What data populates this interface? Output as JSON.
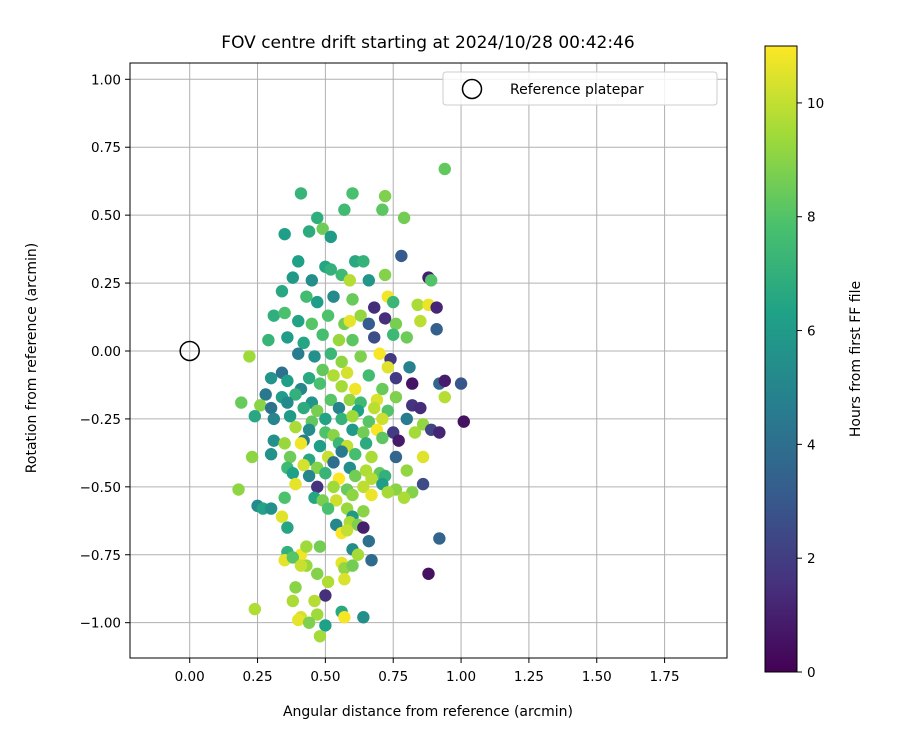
{
  "chart_data": {
    "type": "scatter",
    "title": "FOV centre drift starting at 2024/10/28 00:42:46",
    "xlabel": "Angular distance from reference (arcmin)",
    "ylabel": "Rotation from reference (arcmin)",
    "xlim": [
      -0.22,
      1.98
    ],
    "ylim": [
      -1.13,
      1.06
    ],
    "xticks": [
      "0.00",
      "0.25",
      "0.50",
      "0.75",
      "1.00",
      "1.25",
      "1.50",
      "1.75"
    ],
    "yticks": [
      "1.00",
      "0.75",
      "0.50",
      "0.25",
      "0.00",
      "−0.25",
      "−0.50",
      "−0.75",
      "−1.00"
    ],
    "grid": true,
    "legend": {
      "position": "top-right",
      "entries": [
        "Reference platepar"
      ]
    },
    "reference_point": {
      "x": 0.0,
      "y": 0.0
    },
    "colorbar": {
      "label": "Hours from first FF file",
      "colormap": "viridis",
      "range": [
        0,
        11
      ],
      "ticks": [
        "0",
        "2",
        "4",
        "6",
        "8",
        "10"
      ]
    },
    "colors": [
      "#440154",
      "#46327e",
      "#365c8d",
      "#277f8e",
      "#1fa187",
      "#4ac16d",
      "#a0da39",
      "#fde725"
    ],
    "points": [
      [
        0.94,
        0.67,
        8.3
      ],
      [
        0.72,
        0.57,
        8.8
      ],
      [
        0.41,
        0.58,
        7.2
      ],
      [
        0.6,
        0.58,
        7.8
      ],
      [
        0.79,
        0.49,
        8.6
      ],
      [
        0.71,
        0.52,
        8.2
      ],
      [
        0.57,
        0.52,
        7.5
      ],
      [
        0.47,
        0.49,
        6.9
      ],
      [
        0.35,
        0.43,
        6.2
      ],
      [
        0.44,
        0.44,
        6.8
      ],
      [
        0.49,
        0.45,
        8.5
      ],
      [
        0.52,
        0.42,
        6.0
      ],
      [
        0.61,
        0.33,
        6.7
      ],
      [
        0.64,
        0.33,
        7.1
      ],
      [
        0.78,
        0.35,
        3.1
      ],
      [
        0.4,
        0.33,
        6.3
      ],
      [
        0.38,
        0.27,
        5.9
      ],
      [
        0.45,
        0.26,
        5.4
      ],
      [
        0.5,
        0.31,
        6.5
      ],
      [
        0.52,
        0.3,
        7.0
      ],
      [
        0.56,
        0.28,
        7.4
      ],
      [
        0.59,
        0.26,
        9.8
      ],
      [
        0.66,
        0.26,
        5.8
      ],
      [
        0.72,
        0.28,
        8.9
      ],
      [
        0.88,
        0.27,
        1.0
      ],
      [
        0.89,
        0.26,
        8.0
      ],
      [
        0.34,
        0.22,
        6.6
      ],
      [
        0.43,
        0.2,
        7.6
      ],
      [
        0.47,
        0.18,
        6.1
      ],
      [
        0.53,
        0.2,
        5.2
      ],
      [
        0.6,
        0.19,
        8.4
      ],
      [
        0.68,
        0.16,
        1.4
      ],
      [
        0.73,
        0.2,
        10.8
      ],
      [
        0.75,
        0.18,
        7.3
      ],
      [
        0.84,
        0.17,
        9.6
      ],
      [
        0.88,
        0.17,
        10.7
      ],
      [
        0.91,
        0.16,
        1.2
      ],
      [
        0.31,
        0.13,
        6.9
      ],
      [
        0.35,
        0.14,
        7.8
      ],
      [
        0.4,
        0.11,
        6.4
      ],
      [
        0.45,
        0.1,
        8.1
      ],
      [
        0.51,
        0.13,
        7.9
      ],
      [
        0.57,
        0.1,
        8.6
      ],
      [
        0.59,
        0.11,
        10.6
      ],
      [
        0.63,
        0.13,
        9.2
      ],
      [
        0.66,
        0.1,
        3.2
      ],
      [
        0.72,
        0.12,
        1.5
      ],
      [
        0.76,
        0.1,
        8.7
      ],
      [
        0.85,
        0.11,
        9.9
      ],
      [
        0.91,
        0.08,
        3.3
      ],
      [
        0.29,
        0.04,
        7.2
      ],
      [
        0.36,
        0.05,
        6.1
      ],
      [
        0.42,
        0.03,
        6.5
      ],
      [
        0.49,
        0.06,
        7.7
      ],
      [
        0.55,
        0.04,
        9.3
      ],
      [
        0.6,
        0.04,
        8.2
      ],
      [
        0.68,
        0.05,
        2.6
      ],
      [
        0.75,
        0.06,
        7.4
      ],
      [
        0.8,
        0.05,
        8.5
      ],
      [
        0.22,
        -0.02,
        9.4
      ],
      [
        0.4,
        -0.01,
        4.6
      ],
      [
        0.46,
        -0.02,
        5.5
      ],
      [
        0.52,
        -0.01,
        7.3
      ],
      [
        0.56,
        -0.04,
        9.1
      ],
      [
        0.63,
        -0.02,
        8.8
      ],
      [
        0.7,
        -0.01,
        10.9
      ],
      [
        0.74,
        -0.03,
        1.8
      ],
      [
        0.81,
        -0.06,
        4.8
      ],
      [
        0.34,
        -0.08,
        4.1
      ],
      [
        0.44,
        -0.1,
        6.7
      ],
      [
        0.49,
        -0.07,
        8.3
      ],
      [
        0.53,
        -0.09,
        9.7
      ],
      [
        0.58,
        -0.08,
        10.3
      ],
      [
        0.66,
        -0.09,
        7.6
      ],
      [
        0.73,
        -0.06,
        10.5
      ],
      [
        0.76,
        -0.1,
        1.9
      ],
      [
        0.3,
        -0.1,
        5.7
      ],
      [
        0.36,
        -0.11,
        6.2
      ],
      [
        0.41,
        -0.14,
        5.1
      ],
      [
        0.48,
        -0.12,
        7.8
      ],
      [
        0.56,
        -0.13,
        9.5
      ],
      [
        0.61,
        -0.14,
        10.8
      ],
      [
        0.71,
        -0.14,
        8.4
      ],
      [
        0.82,
        -0.12,
        0.6
      ],
      [
        0.92,
        -0.12,
        3.6
      ],
      [
        0.94,
        -0.11,
        0.9
      ],
      [
        1.0,
        -0.12,
        2.9
      ],
      [
        0.28,
        -0.16,
        4.4
      ],
      [
        0.34,
        -0.17,
        6.1
      ],
      [
        0.39,
        -0.16,
        7.0
      ],
      [
        0.45,
        -0.19,
        5.7
      ],
      [
        0.52,
        -0.18,
        8.1
      ],
      [
        0.59,
        -0.18,
        9.2
      ],
      [
        0.63,
        -0.19,
        7.5
      ],
      [
        0.69,
        -0.18,
        10.4
      ],
      [
        0.76,
        -0.17,
        8.8
      ],
      [
        0.94,
        -0.17,
        9.8
      ],
      [
        0.19,
        -0.19,
        8.4
      ],
      [
        0.26,
        -0.2,
        9.0
      ],
      [
        0.3,
        -0.21,
        4.2
      ],
      [
        0.36,
        -0.19,
        5.2
      ],
      [
        0.42,
        -0.21,
        6.8
      ],
      [
        0.47,
        -0.22,
        8.7
      ],
      [
        0.55,
        -0.21,
        4.9
      ],
      [
        0.62,
        -0.22,
        6.3
      ],
      [
        0.68,
        -0.21,
        9.9
      ],
      [
        0.73,
        -0.22,
        8.0
      ],
      [
        0.82,
        -0.2,
        1.6
      ],
      [
        0.85,
        -0.21,
        1.4
      ],
      [
        0.24,
        -0.24,
        6.6
      ],
      [
        0.31,
        -0.25,
        5.0
      ],
      [
        0.37,
        -0.24,
        6.0
      ],
      [
        0.45,
        -0.26,
        8.3
      ],
      [
        0.5,
        -0.25,
        6.4
      ],
      [
        0.56,
        -0.25,
        7.1
      ],
      [
        0.6,
        -0.24,
        9.4
      ],
      [
        0.66,
        -0.26,
        8.1
      ],
      [
        0.71,
        -0.25,
        10.2
      ],
      [
        0.8,
        -0.25,
        4.6
      ],
      [
        0.86,
        -0.27,
        9.2
      ],
      [
        1.01,
        -0.26,
        0.5
      ],
      [
        0.39,
        -0.28,
        9.6
      ],
      [
        0.44,
        -0.29,
        5.3
      ],
      [
        0.5,
        -0.3,
        7.9
      ],
      [
        0.53,
        -0.31,
        9.0
      ],
      [
        0.6,
        -0.29,
        5.9
      ],
      [
        0.64,
        -0.3,
        8.6
      ],
      [
        0.69,
        -0.29,
        10.9
      ],
      [
        0.75,
        -0.3,
        2.0
      ],
      [
        0.83,
        -0.3,
        9.5
      ],
      [
        0.89,
        -0.29,
        2.2
      ],
      [
        0.92,
        -0.3,
        1.2
      ],
      [
        0.31,
        -0.33,
        5.5
      ],
      [
        0.35,
        -0.34,
        9.3
      ],
      [
        0.42,
        -0.33,
        4.7
      ],
      [
        0.48,
        -0.35,
        6.2
      ],
      [
        0.55,
        -0.34,
        7.3
      ],
      [
        0.58,
        -0.35,
        10.0
      ],
      [
        0.65,
        -0.34,
        6.8
      ],
      [
        0.71,
        -0.32,
        8.2
      ],
      [
        0.77,
        -0.33,
        0.8
      ],
      [
        0.41,
        -0.34,
        10.8
      ],
      [
        0.3,
        -0.38,
        5.6
      ],
      [
        0.37,
        -0.39,
        8.5
      ],
      [
        0.44,
        -0.4,
        6.6
      ],
      [
        0.51,
        -0.39,
        10.1
      ],
      [
        0.56,
        -0.37,
        4.5
      ],
      [
        0.61,
        -0.38,
        7.7
      ],
      [
        0.67,
        -0.39,
        9.6
      ],
      [
        0.76,
        -0.39,
        3.6
      ],
      [
        0.86,
        -0.39,
        10.5
      ],
      [
        0.23,
        -0.39,
        9.1
      ],
      [
        0.36,
        -0.43,
        7.4
      ],
      [
        0.42,
        -0.42,
        10.3
      ],
      [
        0.47,
        -0.43,
        8.9
      ],
      [
        0.53,
        -0.41,
        4.0
      ],
      [
        0.59,
        -0.43,
        5.4
      ],
      [
        0.65,
        -0.44,
        9.7
      ],
      [
        0.7,
        -0.45,
        8.3
      ],
      [
        0.8,
        -0.44,
        9.2
      ],
      [
        0.38,
        -0.45,
        6.3
      ],
      [
        0.44,
        -0.46,
        5.1
      ],
      [
        0.5,
        -0.45,
        7.2
      ],
      [
        0.55,
        -0.47,
        11.0
      ],
      [
        0.61,
        -0.46,
        8.6
      ],
      [
        0.67,
        -0.47,
        9.8
      ],
      [
        0.72,
        -0.46,
        7.0
      ],
      [
        0.86,
        -0.49,
        2.5
      ],
      [
        0.39,
        -0.49,
        10.6
      ],
      [
        0.47,
        -0.5,
        1.6
      ],
      [
        0.53,
        -0.5,
        9.4
      ],
      [
        0.58,
        -0.51,
        8.4
      ],
      [
        0.64,
        -0.5,
        9.9
      ],
      [
        0.71,
        -0.49,
        6.1
      ],
      [
        0.76,
        -0.51,
        9.0
      ],
      [
        0.82,
        -0.52,
        8.9
      ],
      [
        0.18,
        -0.51,
        9.1
      ],
      [
        0.35,
        -0.54,
        7.9
      ],
      [
        0.46,
        -0.54,
        6.5
      ],
      [
        0.49,
        -0.55,
        8.7
      ],
      [
        0.54,
        -0.55,
        10.2
      ],
      [
        0.6,
        -0.53,
        9.1
      ],
      [
        0.67,
        -0.53,
        10.7
      ],
      [
        0.73,
        -0.52,
        9.5
      ],
      [
        0.79,
        -0.54,
        9.6
      ],
      [
        0.25,
        -0.57,
        5.2
      ],
      [
        0.27,
        -0.58,
        6.4
      ],
      [
        0.3,
        -0.58,
        5.5
      ],
      [
        0.34,
        -0.61,
        10.5
      ],
      [
        0.51,
        -0.58,
        7.8
      ],
      [
        0.58,
        -0.58,
        9.3
      ],
      [
        0.6,
        -0.61,
        5.9
      ],
      [
        0.64,
        -0.59,
        9.0
      ],
      [
        0.36,
        -0.65,
        6.5
      ],
      [
        0.54,
        -0.64,
        5.1
      ],
      [
        0.59,
        -0.63,
        9.6
      ],
      [
        0.62,
        -0.64,
        8.8
      ],
      [
        0.64,
        -0.65,
        1.0
      ],
      [
        0.56,
        -0.67,
        10.9
      ],
      [
        0.58,
        -0.66,
        10.0
      ],
      [
        0.66,
        -0.7,
        4.0
      ],
      [
        0.92,
        -0.69,
        3.5
      ],
      [
        0.36,
        -0.74,
        7.0
      ],
      [
        0.41,
        -0.75,
        10.8
      ],
      [
        0.43,
        -0.72,
        9.4
      ],
      [
        0.48,
        -0.72,
        8.6
      ],
      [
        0.6,
        -0.73,
        5.3
      ],
      [
        0.62,
        -0.75,
        9.5
      ],
      [
        0.67,
        -0.77,
        3.8
      ],
      [
        0.35,
        -0.77,
        10.6
      ],
      [
        0.38,
        -0.76,
        8.1
      ],
      [
        0.43,
        -0.79,
        9.3
      ],
      [
        0.47,
        -0.82,
        8.9
      ],
      [
        0.56,
        -0.78,
        10.6
      ],
      [
        0.57,
        -0.8,
        9.2
      ],
      [
        0.6,
        -0.79,
        8.6
      ],
      [
        0.39,
        -0.87,
        9.0
      ],
      [
        0.41,
        -0.79,
        10.1
      ],
      [
        0.51,
        -0.85,
        9.7
      ],
      [
        0.57,
        -0.84,
        10.4
      ],
      [
        0.88,
        -0.82,
        0.5
      ],
      [
        0.5,
        -0.9,
        1.5
      ],
      [
        0.38,
        -0.92,
        9.6
      ],
      [
        0.46,
        -0.92,
        9.8
      ],
      [
        0.41,
        -0.98,
        10.3
      ],
      [
        0.47,
        -0.97,
        9.4
      ],
      [
        0.4,
        -0.99,
        10.6
      ],
      [
        0.44,
        -1.0,
        8.8
      ],
      [
        0.5,
        -1.01,
        6.3
      ],
      [
        0.56,
        -0.96,
        6.7
      ],
      [
        0.57,
        -0.98,
        10.9
      ],
      [
        0.64,
        -0.98,
        5.4
      ],
      [
        0.48,
        -1.05,
        9.5
      ],
      [
        0.24,
        -0.95,
        9.7
      ]
    ]
  }
}
